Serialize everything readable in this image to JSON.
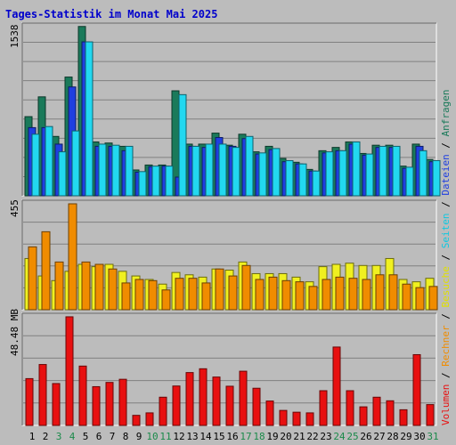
{
  "chart_data": [
    {
      "type": "bar",
      "title": "Tages-Statistik im Monat Mai 2025",
      "y_label_max": "1538",
      "ylim": [
        0,
        1538
      ],
      "categories": [
        "1",
        "2",
        "3",
        "4",
        "5",
        "6",
        "7",
        "8",
        "9",
        "10",
        "11",
        "12",
        "13",
        "14",
        "15",
        "16",
        "17",
        "18",
        "19",
        "20",
        "21",
        "22",
        "23",
        "24",
        "25",
        "26",
        "27",
        "28",
        "29",
        "30",
        "31"
      ],
      "weekend_days": [
        3,
        4,
        10,
        11,
        17,
        18,
        24,
        25,
        31
      ],
      "series": [
        {
          "name": "Anfragen",
          "color": "#1a7a5a",
          "values": [
            720,
            900,
            540,
            1080,
            1540,
            490,
            480,
            450,
            235,
            280,
            280,
            955,
            470,
            470,
            570,
            460,
            560,
            400,
            450,
            340,
            305,
            240,
            410,
            440,
            490,
            385,
            460,
            460,
            270,
            470,
            330
          ]
        },
        {
          "name": "Dateien",
          "color": "#1f3fe0",
          "values": [
            620,
            620,
            470,
            990,
            1400,
            450,
            450,
            410,
            215,
            265,
            270,
            170,
            450,
            440,
            530,
            450,
            520,
            380,
            420,
            310,
            290,
            225,
            390,
            410,
            470,
            370,
            440,
            440,
            250,
            450,
            310
          ]
        },
        {
          "name": "Seiten",
          "color": "#22d8f0",
          "values": [
            560,
            630,
            400,
            590,
            1400,
            470,
            460,
            450,
            220,
            270,
            270,
            920,
            450,
            470,
            470,
            440,
            540,
            390,
            430,
            320,
            290,
            225,
            400,
            410,
            490,
            380,
            450,
            450,
            260,
            410,
            320
          ]
        }
      ]
    },
    {
      "type": "bar",
      "y_label_max": "455",
      "ylim": [
        0,
        455
      ],
      "categories": [
        "1",
        "2",
        "3",
        "4",
        "5",
        "6",
        "7",
        "8",
        "9",
        "10",
        "11",
        "12",
        "13",
        "14",
        "15",
        "16",
        "17",
        "18",
        "19",
        "20",
        "21",
        "22",
        "23",
        "24",
        "25",
        "26",
        "27",
        "28",
        "29",
        "30",
        "31"
      ],
      "series": [
        {
          "name": "Besuche",
          "color": "#f0f020",
          "values": [
            220,
            145,
            125,
            165,
            195,
            185,
            195,
            165,
            145,
            130,
            110,
            160,
            150,
            140,
            175,
            170,
            205,
            155,
            155,
            155,
            140,
            120,
            185,
            195,
            200,
            190,
            190,
            220,
            130,
            120,
            135
          ]
        },
        {
          "name": "Rechner",
          "color": "#f08c00",
          "values": [
            270,
            335,
            205,
            455,
            205,
            195,
            175,
            115,
            130,
            125,
            85,
            135,
            135,
            115,
            175,
            145,
            190,
            130,
            140,
            125,
            120,
            100,
            130,
            140,
            135,
            130,
            150,
            150,
            110,
            95,
            100
          ]
        }
      ]
    },
    {
      "type": "bar",
      "y_label_max": "48.48 MB",
      "ylim": [
        0,
        48.48
      ],
      "categories": [
        "1",
        "2",
        "3",
        "4",
        "5",
        "6",
        "7",
        "8",
        "9",
        "10",
        "11",
        "12",
        "13",
        "14",
        "15",
        "16",
        "17",
        "18",
        "19",
        "20",
        "21",
        "22",
        "23",
        "24",
        "25",
        "26",
        "27",
        "28",
        "29",
        "30",
        "31"
      ],
      "series": [
        {
          "name": "Volumen",
          "color": "#e81010",
          "values": [
            20.9,
            27.2,
            18.7,
            48.5,
            26.5,
            17.3,
            19.2,
            20.6,
            4.5,
            5.6,
            12.6,
            17.6,
            23.6,
            25.3,
            21.6,
            17.5,
            24.2,
            16.6,
            10.9,
            6.7,
            5.9,
            5.6,
            15.5,
            35.0,
            15.5,
            8.3,
            12.6,
            11.0,
            7.0,
            31.6,
            9.3
          ]
        }
      ]
    }
  ],
  "legend": [
    {
      "name": "Volumen",
      "color": "#e81010"
    },
    {
      "name": "Rechner",
      "color": "#f08c00"
    },
    {
      "name": "Besuche",
      "color": "#e0e000"
    },
    {
      "name": "Seiten",
      "color": "#10c8e0"
    },
    {
      "name": "Dateien",
      "color": "#1f3fe0"
    },
    {
      "name": "Anfragen",
      "color": "#1a7a5a"
    }
  ],
  "legend_separator": "/",
  "colors": {
    "background": "#bcbcbc",
    "title": "#0000cc",
    "weekday_label": "#000000",
    "weekend_label": "#1a8a4a"
  }
}
